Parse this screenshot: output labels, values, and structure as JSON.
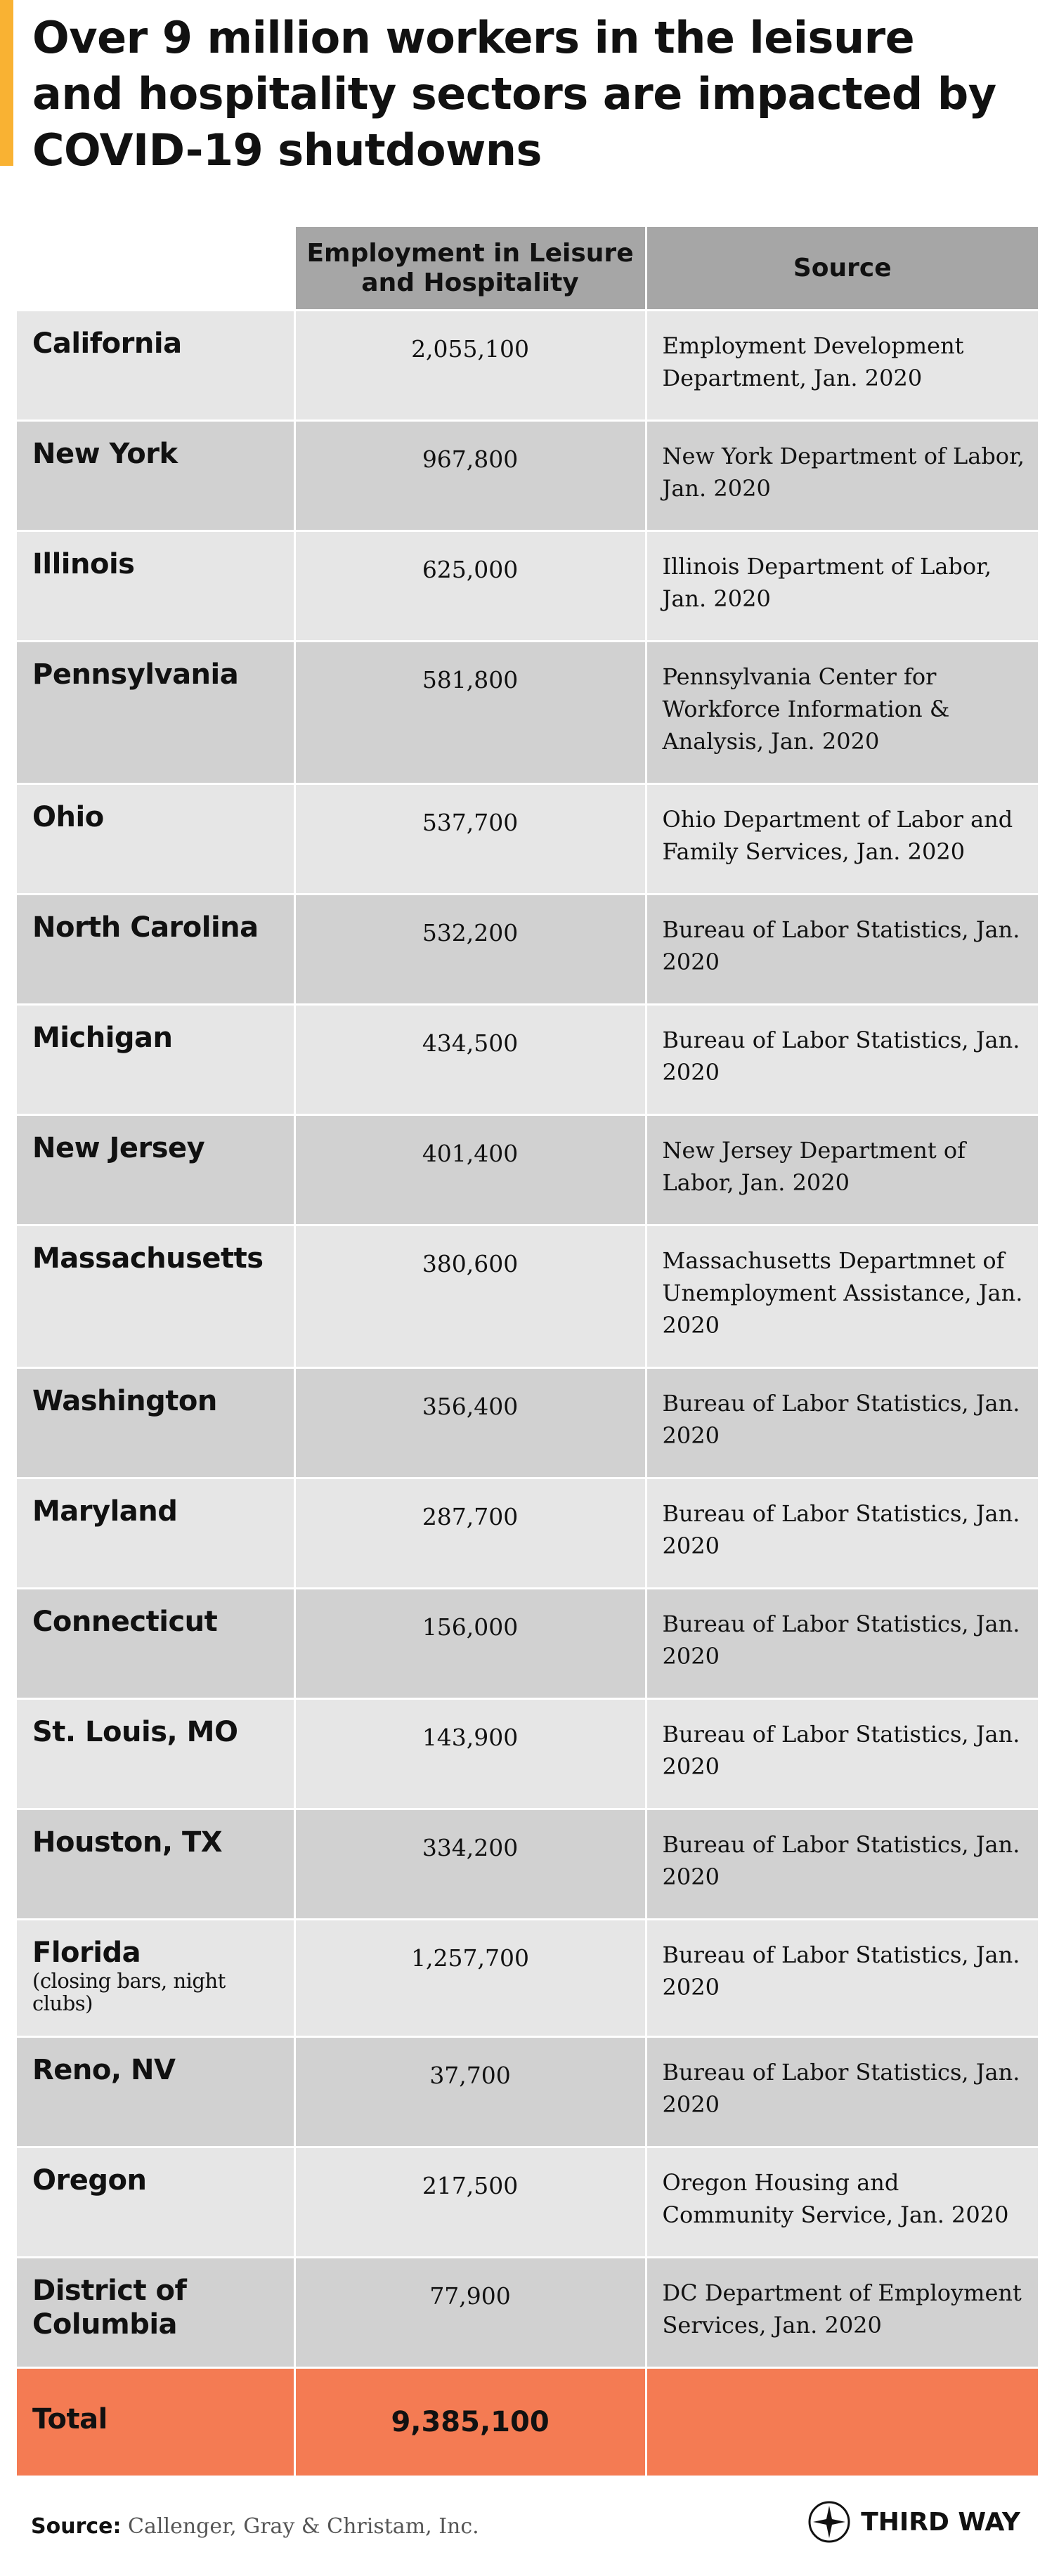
{
  "header": {
    "title": "Over 9 million workers in the leisure and hospitality sectors are impacted by COVID-19 shutdowns"
  },
  "table": {
    "columns": [
      "Employment in Leisure and Hospitality",
      "Source"
    ],
    "rows": [
      {
        "place": "California",
        "employment": "2,055,100",
        "source": "Employment Development Department, Jan. 2020"
      },
      {
        "place": "New York",
        "employment": "967,800",
        "source": "New York Department of Labor, Jan. 2020"
      },
      {
        "place": "Illinois",
        "employment": "625,000",
        "source": "Illinois Department of Labor, Jan. 2020"
      },
      {
        "place": "Pennsylvania",
        "employment": "581,800",
        "source": "Pennsylvania Center for Workforce Information & Analysis, Jan. 2020"
      },
      {
        "place": "Ohio",
        "employment": "537,700",
        "source": "Ohio Department of Labor and Family Services, Jan. 2020"
      },
      {
        "place": "North Carolina",
        "employment": "532,200",
        "source": "Bureau of Labor Statistics, Jan. 2020"
      },
      {
        "place": "Michigan",
        "employment": "434,500",
        "source": "Bureau of Labor Statistics, Jan. 2020"
      },
      {
        "place": "New Jersey",
        "employment": "401,400",
        "source": "New Jersey Department of Labor, Jan. 2020"
      },
      {
        "place": "Massachusetts",
        "employment": "380,600",
        "source": "Massachusetts Departmnet of Unemployment Assistance, Jan. 2020"
      },
      {
        "place": "Washington",
        "employment": "356,400",
        "source": "Bureau of Labor Statistics, Jan. 2020"
      },
      {
        "place": "Maryland",
        "employment": "287,700",
        "source": "Bureau of Labor Statistics, Jan. 2020"
      },
      {
        "place": "Connecticut",
        "employment": "156,000",
        "source": "Bureau of Labor Statistics, Jan. 2020"
      },
      {
        "place": "St. Louis, MO",
        "employment": "143,900",
        "source": "Bureau of Labor Statistics, Jan. 2020"
      },
      {
        "place": "Houston, TX",
        "employment": "334,200",
        "source": "Bureau of Labor Statistics, Jan. 2020"
      },
      {
        "place": "Florida",
        "note": "(closing bars, night clubs)",
        "employment": "1,257,700",
        "source": "Bureau of Labor Statistics, Jan. 2020"
      },
      {
        "place": "Reno, NV",
        "employment": "37,700",
        "source": "Bureau of Labor Statistics, Jan. 2020"
      },
      {
        "place": "Oregon",
        "employment": "217,500",
        "source": "Oregon Housing and Community Service, Jan. 2020"
      },
      {
        "place": "District of Columbia",
        "employment": "77,900",
        "source": "DC Department of Employment Services, Jan. 2020"
      }
    ],
    "total": {
      "label": "Total",
      "employment": "9,385,100"
    }
  },
  "footer": {
    "source_label": "Source:",
    "source": "Callenger, Gray & Christam, Inc.",
    "logo": "THIRD WAY"
  }
}
